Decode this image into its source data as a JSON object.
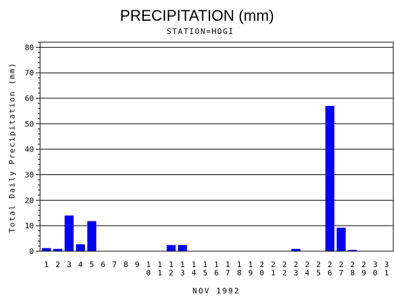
{
  "chart_data": {
    "type": "bar",
    "title": "PRECIPITATION (mm)",
    "subtitle": "STATION=HOGI",
    "xlabel": "NOV 1992",
    "ylabel": "Total Daily Precipitation (mm)",
    "ylim": [
      0,
      82
    ],
    "yticks": [
      0,
      10,
      20,
      30,
      40,
      50,
      60,
      70,
      80
    ],
    "grid": true,
    "bar_color": "#0000ff",
    "categories": [
      "1",
      "2",
      "3",
      "4",
      "5",
      "6",
      "7",
      "8",
      "9",
      "10",
      "11",
      "12",
      "13",
      "14",
      "15",
      "16",
      "17",
      "18",
      "19",
      "20",
      "21",
      "22",
      "23",
      "24",
      "25",
      "26",
      "27",
      "28",
      "29",
      "30",
      "31"
    ],
    "values": [
      1.2,
      0.9,
      14.0,
      2.7,
      11.8,
      0,
      0,
      0,
      0,
      0,
      0,
      2.4,
      2.4,
      0,
      0,
      0,
      0,
      0,
      0,
      0,
      0,
      0,
      0.9,
      0,
      0,
      57.0,
      9.2,
      0.5,
      0,
      0,
      0
    ]
  }
}
